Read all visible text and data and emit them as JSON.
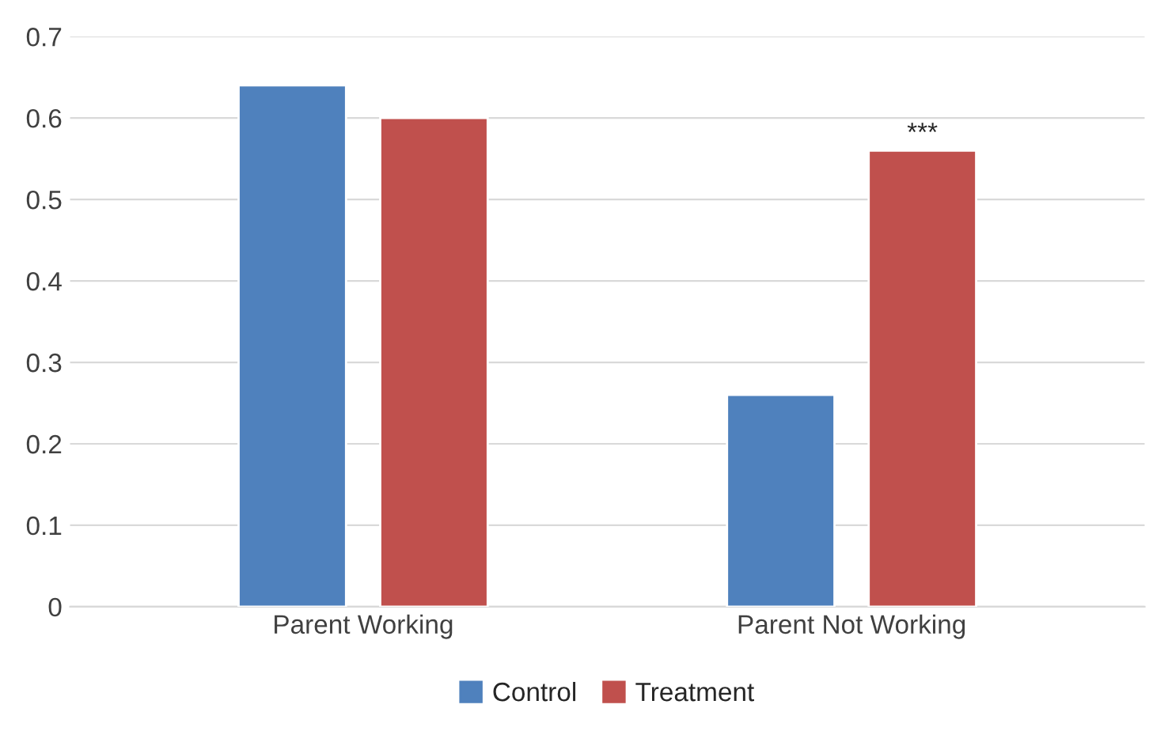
{
  "chart_data": {
    "type": "bar",
    "categories": [
      "Parent Working",
      "Parent Not Working"
    ],
    "series": [
      {
        "name": "Control",
        "color": "#4f81bd",
        "values": [
          0.64,
          0.26
        ]
      },
      {
        "name": "Treatment",
        "color": "#c0504d",
        "values": [
          0.6,
          0.56
        ]
      }
    ],
    "ylim": [
      0,
      0.7
    ],
    "yticks": [
      0,
      0.1,
      0.2,
      0.3,
      0.4,
      0.5,
      0.6,
      0.7
    ],
    "annotations": [
      "***"
    ],
    "grid": "y",
    "legend": "bottom"
  }
}
